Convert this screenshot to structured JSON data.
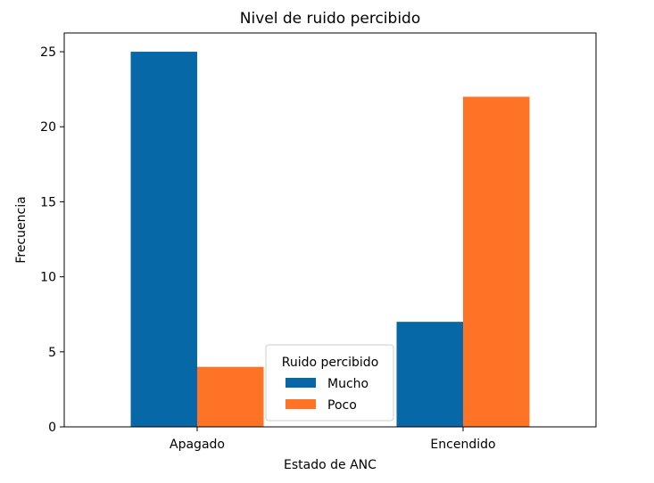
{
  "chart_data": {
    "type": "bar",
    "title": "Nivel de ruido percibido",
    "xlabel": "Estado de ANC",
    "ylabel": "Frecuencia",
    "categories": [
      "Apagado",
      "Encendido"
    ],
    "series": [
      {
        "name": "Mucho",
        "values": [
          25,
          7
        ],
        "color": "#0668a6"
      },
      {
        "name": "Poco",
        "values": [
          4,
          22
        ],
        "color": "#ff7326"
      }
    ],
    "ylim": [
      0,
      26.25
    ],
    "yticks": [
      0,
      5,
      10,
      15,
      20,
      25
    ],
    "grid": false,
    "legend": {
      "title": "Ruido percibido",
      "placement": "bottom-center"
    }
  }
}
